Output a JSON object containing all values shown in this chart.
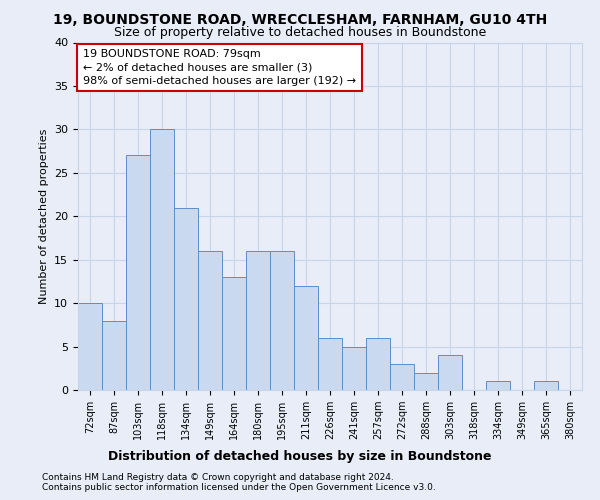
{
  "title": "19, BOUNDSTONE ROAD, WRECCLESHAM, FARNHAM, GU10 4TH",
  "subtitle": "Size of property relative to detached houses in Boundstone",
  "xlabel": "Distribution of detached houses by size in Boundstone",
  "ylabel": "Number of detached properties",
  "categories": [
    "72sqm",
    "87sqm",
    "103sqm",
    "118sqm",
    "134sqm",
    "149sqm",
    "164sqm",
    "180sqm",
    "195sqm",
    "211sqm",
    "226sqm",
    "241sqm",
    "257sqm",
    "272sqm",
    "288sqm",
    "303sqm",
    "318sqm",
    "334sqm",
    "349sqm",
    "365sqm",
    "380sqm"
  ],
  "values": [
    10,
    8,
    27,
    30,
    21,
    16,
    13,
    16,
    16,
    12,
    6,
    5,
    6,
    3,
    2,
    4,
    0,
    1,
    0,
    1,
    0
  ],
  "bar_color": "#c9d9f0",
  "bar_edge_color": "#5b8fc9",
  "annotation_line1": "19 BOUNDSTONE ROAD: 79sqm",
  "annotation_line2": "← 2% of detached houses are smaller (3)",
  "annotation_line3": "98% of semi-detached houses are larger (192) →",
  "annotation_box_color": "#ffffff",
  "annotation_box_edge": "#cc0000",
  "ylim": [
    0,
    40
  ],
  "yticks": [
    0,
    5,
    10,
    15,
    20,
    25,
    30,
    35,
    40
  ],
  "grid_color": "#c8d4e8",
  "background_color": "#e8edf8",
  "footer_line1": "Contains HM Land Registry data © Crown copyright and database right 2024.",
  "footer_line2": "Contains public sector information licensed under the Open Government Licence v3.0."
}
